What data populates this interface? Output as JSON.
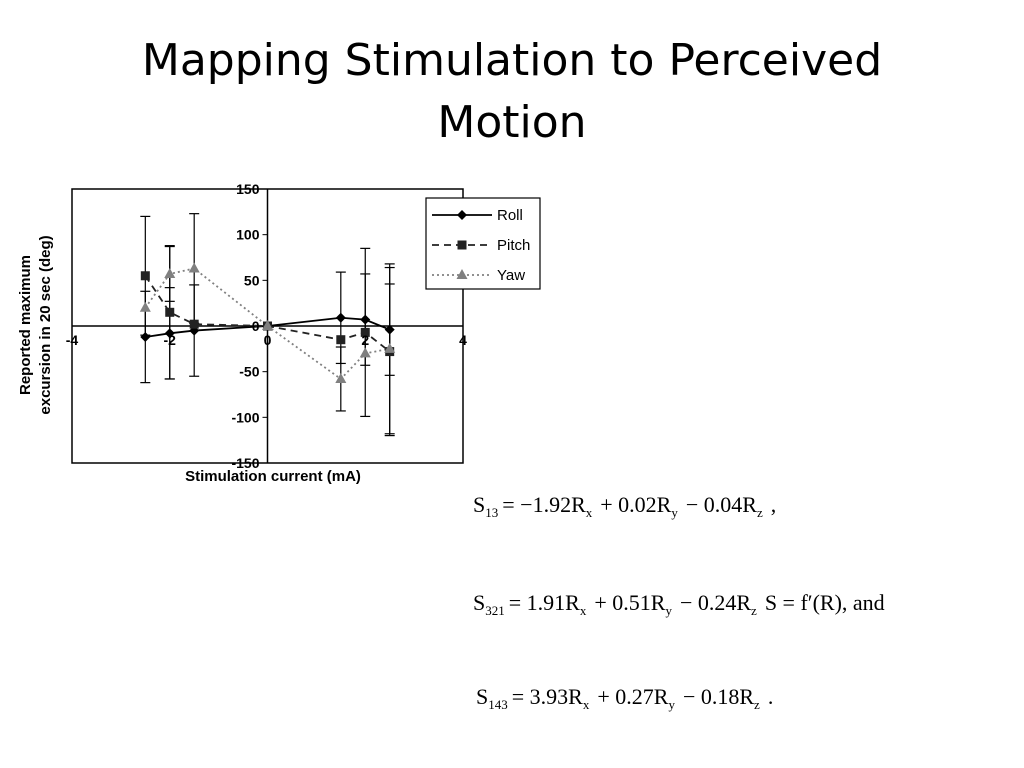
{
  "slide": {
    "title_line1": "Mapping Stimulation to Perceived",
    "title_line2": "Motion"
  },
  "chart_data": {
    "type": "line",
    "xlabel": "Stimulation current (mA)",
    "ylabel_line1": "Reported maximum",
    "ylabel_line2": "excursion in 20 sec (deg)",
    "xlim": [
      -4,
      4
    ],
    "ylim": [
      -150,
      150
    ],
    "xticks": [
      "-4",
      "-2",
      "0",
      "2",
      "4"
    ],
    "yticks": [
      "150",
      "100",
      "50",
      "0",
      "-50",
      "-100",
      "-150"
    ],
    "xtick_values": [
      -4,
      -2,
      0,
      2,
      4
    ],
    "ytick_values": [
      150,
      100,
      50,
      0,
      -50,
      -100,
      -150
    ],
    "legend_position": "top-right",
    "series": [
      {
        "name": "Roll",
        "style": "solid",
        "marker": "diamond",
        "color": "#000000",
        "x": [
          -2.5,
          -2.0,
          -1.5,
          0.0,
          1.5,
          2.0,
          2.5
        ],
        "y": [
          -12,
          -8,
          -5,
          0,
          9,
          7,
          -4
        ],
        "err": [
          50,
          50,
          50,
          0,
          50,
          50,
          50
        ]
      },
      {
        "name": "Pitch",
        "style": "dashed",
        "marker": "square",
        "color": "#222222",
        "x": [
          -2.5,
          -2.0,
          -1.5,
          0.0,
          1.5,
          2.0,
          2.5
        ],
        "y": [
          55,
          15,
          2,
          0,
          -15,
          -7,
          -28
        ],
        "err": [
          65,
          73,
          0,
          0,
          0,
          92,
          92
        ]
      },
      {
        "name": "Yaw",
        "style": "dotted",
        "marker": "triangle",
        "color": "#808080",
        "x": [
          -2.5,
          -2.0,
          -1.5,
          0.0,
          1.5,
          2.0,
          2.5
        ],
        "y": [
          20,
          57,
          63,
          0,
          -58,
          -30,
          -25
        ],
        "err": [
          0,
          30,
          60,
          0,
          35,
          0,
          93
        ]
      }
    ]
  },
  "equations": [
    {
      "lhs": "S",
      "lhs_sub": "13",
      "terms": [
        {
          "text": "= −1.92R",
          "sub": "x"
        },
        {
          "text": "+ 0.02R",
          "sub": "y"
        },
        {
          "text": "− 0.04R",
          "sub": "z"
        }
      ],
      "tail": ","
    },
    {
      "lhs": "S",
      "lhs_sub": "321",
      "terms": [
        {
          "text": "= 1.91R",
          "sub": "x"
        },
        {
          "text": "+ 0.51R",
          "sub": "y"
        },
        {
          "text": "− 0.24R",
          "sub": "z"
        }
      ],
      "tail": "S = f′(R), and"
    },
    {
      "lhs": "S",
      "lhs_sub": "143",
      "terms": [
        {
          "text": "= 3.93R",
          "sub": "x"
        },
        {
          "text": "+ 0.27R",
          "sub": "y"
        },
        {
          "text": "− 0.18R",
          "sub": "z"
        }
      ],
      "tail": "."
    }
  ]
}
